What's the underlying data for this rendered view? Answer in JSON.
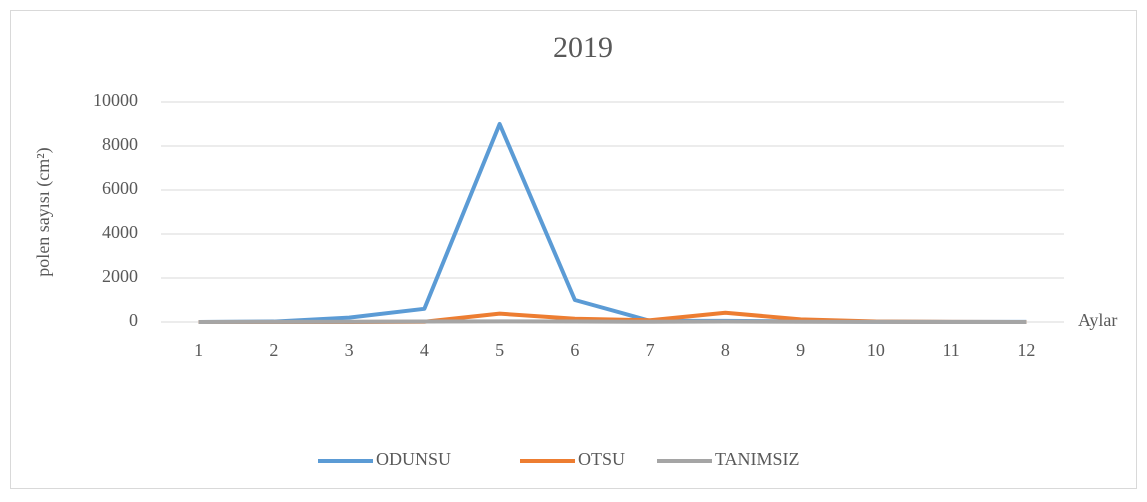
{
  "chart_data": {
    "type": "line",
    "title": "2019",
    "y_label": "polen sayısı (cm²)",
    "x_label": "Aylar",
    "categories": [
      "1",
      "2",
      "3",
      "4",
      "5",
      "6",
      "7",
      "8",
      "9",
      "10",
      "11",
      "12"
    ],
    "series": [
      {
        "name": "ODUNSU",
        "color": "#5b9bd5",
        "values": [
          0,
          20,
          200,
          600,
          9000,
          1000,
          50,
          50,
          30,
          10,
          5,
          5
        ]
      },
      {
        "name": "OTSU",
        "color": "#ed7d31",
        "values": [
          0,
          0,
          0,
          10,
          380,
          150,
          80,
          420,
          120,
          20,
          5,
          0
        ]
      },
      {
        "name": "TANIMSIZ",
        "color": "#a5a5a5",
        "values": [
          0,
          5,
          10,
          20,
          30,
          20,
          10,
          20,
          10,
          5,
          0,
          0
        ]
      }
    ],
    "ylim": [
      0,
      10000
    ],
    "yticks": [
      0,
      2000,
      4000,
      6000,
      8000,
      10000
    ],
    "grid": true
  }
}
